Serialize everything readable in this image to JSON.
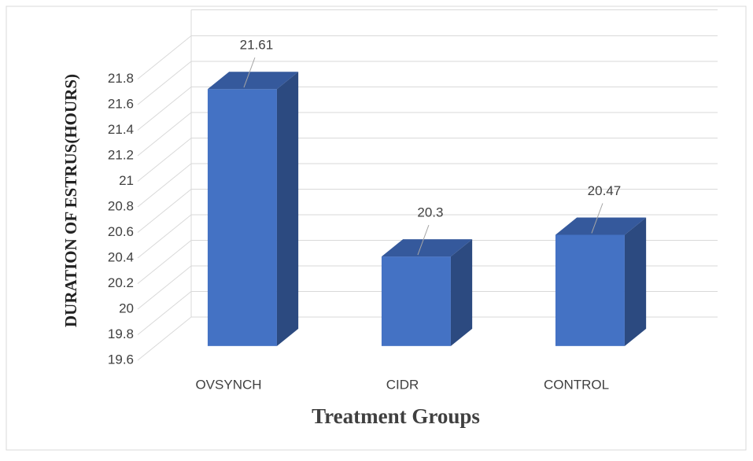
{
  "chart_data": {
    "type": "bar3d",
    "x_label": "Treatment Groups",
    "y_label": "DURATION OF ESTRUS(HOURS)",
    "categories": [
      "OVSYNCH",
      "CIDR",
      "CONTROL"
    ],
    "values": [
      21.61,
      20.3,
      20.47
    ],
    "color": "#4472c4",
    "ylim": [
      19.6,
      21.8
    ],
    "yticks": [
      19.6,
      19.8,
      20,
      20.2,
      20.4,
      20.6,
      20.8,
      21,
      21.2,
      21.4,
      21.6,
      21.8
    ],
    "grid": true
  }
}
